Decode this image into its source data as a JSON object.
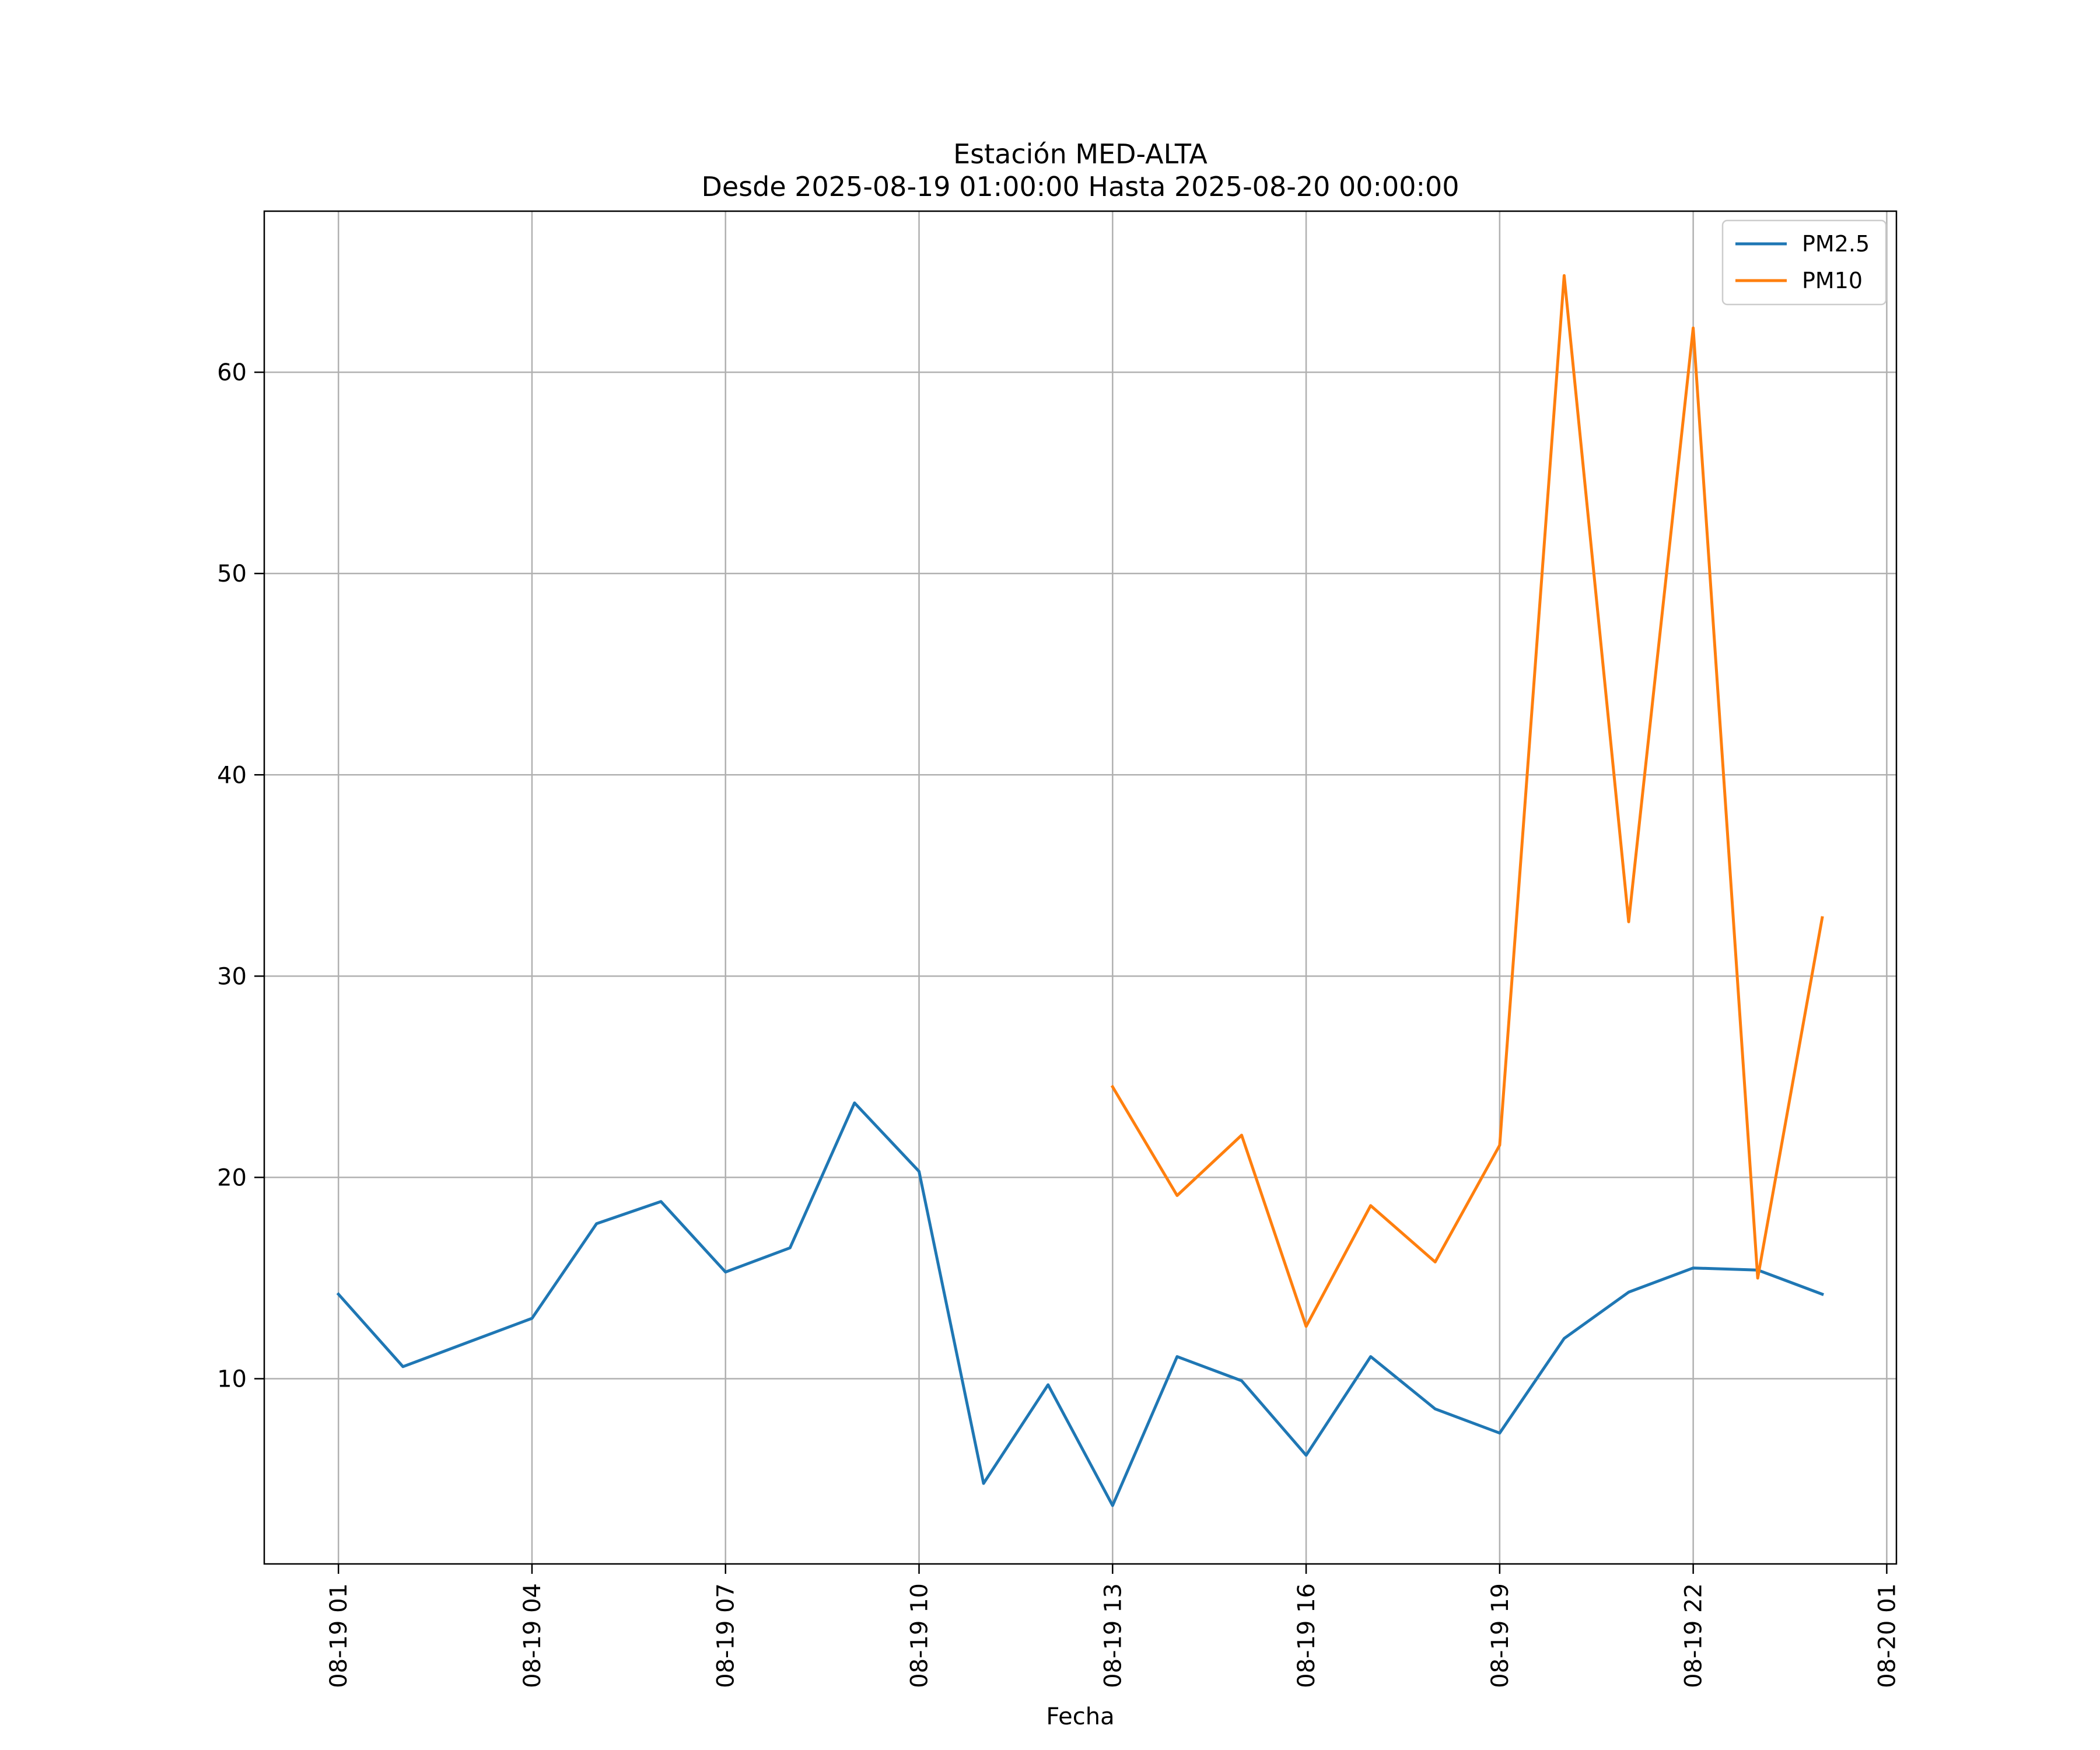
{
  "chart_data": {
    "type": "line",
    "title": "Estación MED-ALTA",
    "subtitle": "Desde 2025-08-19 01:00:00 Hasta 2025-08-20 00:00:00",
    "xlabel": "Fecha",
    "ylabel": "",
    "x_hours": [
      1,
      2,
      3,
      4,
      5,
      6,
      7,
      8,
      9,
      10,
      11,
      12,
      13,
      14,
      15,
      16,
      17,
      18,
      19,
      20,
      21,
      22,
      23,
      24
    ],
    "xlim_hours": [
      -0.15,
      25.15
    ],
    "ylim": [
      0.8,
      68
    ],
    "x_ticks": [
      {
        "hour": 1,
        "label": "08-19 01"
      },
      {
        "hour": 4,
        "label": "08-19 04"
      },
      {
        "hour": 7,
        "label": "08-19 07"
      },
      {
        "hour": 10,
        "label": "08-19 10"
      },
      {
        "hour": 13,
        "label": "08-19 13"
      },
      {
        "hour": 16,
        "label": "08-19 16"
      },
      {
        "hour": 19,
        "label": "08-19 19"
      },
      {
        "hour": 22,
        "label": "08-19 22"
      },
      {
        "hour": 25,
        "label": "08-20 01"
      }
    ],
    "y_ticks": [
      10,
      20,
      30,
      40,
      50,
      60
    ],
    "grid": true,
    "legend_position": "top-right",
    "series": [
      {
        "name": "PM2.5",
        "color": "#1f77b4",
        "values": [
          14.2,
          10.6,
          11.8,
          13.0,
          17.7,
          18.8,
          15.3,
          16.5,
          23.7,
          20.3,
          4.8,
          9.7,
          3.7,
          11.1,
          9.9,
          6.2,
          11.1,
          8.5,
          7.3,
          12.0,
          14.3,
          15.5,
          15.4,
          14.2
        ]
      },
      {
        "name": "PM10",
        "color": "#ff7f0e",
        "values": [
          null,
          null,
          null,
          null,
          null,
          null,
          null,
          null,
          null,
          null,
          null,
          null,
          24.5,
          19.1,
          22.1,
          12.6,
          18.6,
          15.8,
          21.6,
          64.8,
          32.7,
          62.2,
          15.0,
          32.9
        ]
      }
    ]
  }
}
